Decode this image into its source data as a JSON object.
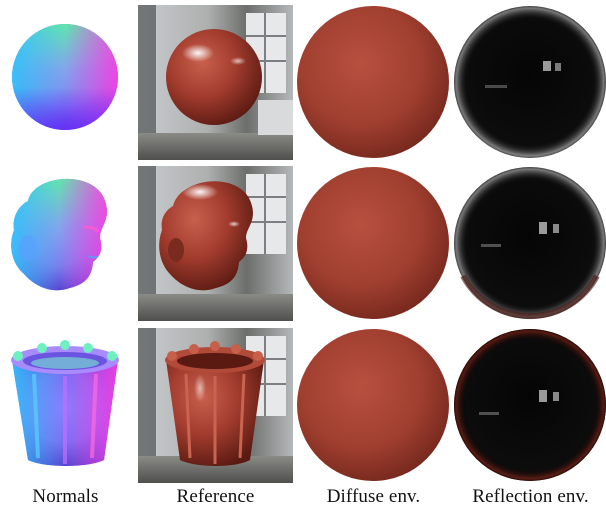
{
  "figure": {
    "columns": [
      {
        "key": "normals",
        "label": "Normals"
      },
      {
        "key": "reference",
        "label": "Reference"
      },
      {
        "key": "diffuse",
        "label": "Diffuse env."
      },
      {
        "key": "reflection",
        "label": "Reflection env."
      }
    ],
    "rows": [
      {
        "object": "sphere"
      },
      {
        "object": "head"
      },
      {
        "object": "cup"
      }
    ],
    "colors": {
      "material": "#a23c2e",
      "material_highlight": "#d97a66",
      "material_shadow": "#5a1a12",
      "reflection_dark": "#0a0a0a",
      "background_room": "#b9b9b4"
    }
  }
}
